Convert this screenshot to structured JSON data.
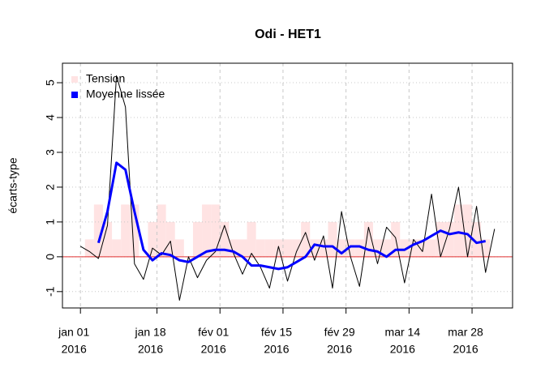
{
  "chart_data": {
    "type": "line",
    "title": "Odi - HET1",
    "y_label": "écarts-type",
    "x": [
      "2016-01-01",
      "2016-01-03",
      "2016-01-05",
      "2016-01-07",
      "2016-01-09",
      "2016-01-11",
      "2016-01-13",
      "2016-01-15",
      "2016-01-17",
      "2016-01-19",
      "2016-01-21",
      "2016-01-23",
      "2016-01-25",
      "2016-01-27",
      "2016-01-29",
      "2016-01-31",
      "2016-02-02",
      "2016-02-04",
      "2016-02-06",
      "2016-02-08",
      "2016-02-10",
      "2016-02-12",
      "2016-02-14",
      "2016-02-16",
      "2016-02-18",
      "2016-02-20",
      "2016-02-22",
      "2016-02-24",
      "2016-02-26",
      "2016-02-28",
      "2016-03-01",
      "2016-03-03",
      "2016-03-05",
      "2016-03-07",
      "2016-03-09",
      "2016-03-11",
      "2016-03-13",
      "2016-03-15",
      "2016-03-17",
      "2016-03-19",
      "2016-03-21",
      "2016-03-23",
      "2016-03-25",
      "2016-03-27",
      "2016-03-29",
      "2016-03-31",
      "2016-04-02"
    ],
    "series": [
      {
        "name": "Tension",
        "type": "bar",
        "color": "#ffe3e3",
        "values": [
          0,
          0.5,
          1.5,
          1.0,
          0.5,
          1.5,
          1.5,
          0,
          1.0,
          1.5,
          1.0,
          0.5,
          0,
          1.0,
          1.5,
          1.5,
          1.0,
          0.5,
          0.5,
          1.0,
          0.5,
          0.5,
          0.5,
          0.5,
          0.5,
          1.0,
          0.5,
          0.5,
          1.0,
          0.5,
          0.5,
          0.5,
          1.0,
          0.5,
          0.5,
          1.0,
          0.5,
          0.5,
          0.5,
          0.5,
          1.0,
          1.0,
          1.5,
          1.5,
          1.0,
          0.5,
          0
        ]
      },
      {
        "name": "Moyenne lissée",
        "type": "line",
        "color": "#0000ff",
        "width": 3,
        "values": [
          null,
          null,
          0.4,
          1.3,
          2.7,
          2.5,
          1.3,
          0.2,
          -0.1,
          0.1,
          0.05,
          -0.1,
          -0.15,
          0.0,
          0.15,
          0.2,
          0.2,
          0.15,
          0.0,
          -0.25,
          -0.25,
          -0.3,
          -0.35,
          -0.3,
          -0.15,
          0.0,
          0.35,
          0.3,
          0.3,
          0.1,
          0.3,
          0.3,
          0.2,
          0.15,
          0.0,
          0.2,
          0.2,
          0.35,
          0.45,
          0.6,
          0.75,
          0.65,
          0.7,
          0.65,
          0.4,
          0.45,
          null
        ]
      },
      {
        "type": "line",
        "color": "#000000",
        "width": 1,
        "values": [
          0.3,
          0.15,
          -0.05,
          0.9,
          5.2,
          4.3,
          -0.2,
          -0.65,
          0.25,
          0.05,
          0.45,
          -1.25,
          0.0,
          -0.6,
          -0.1,
          0.15,
          0.9,
          0.1,
          -0.5,
          0.1,
          -0.3,
          -0.9,
          0.3,
          -0.7,
          0.15,
          0.7,
          -0.1,
          0.6,
          -0.9,
          1.3,
          0.0,
          -0.85,
          0.85,
          -0.2,
          0.85,
          0.55,
          -0.75,
          0.5,
          0.15,
          1.8,
          0.0,
          0.8,
          2.0,
          0.0,
          1.45,
          -0.45,
          0.8
        ]
      }
    ],
    "hline": 0,
    "hline_color": "#e03030",
    "xlim": [
      "2015-12-28",
      "2016-04-06"
    ],
    "xticks": [
      {
        "value": "2016-01-01",
        "label": [
          "jan 01",
          "2016"
        ]
      },
      {
        "value": "2016-01-18",
        "label": [
          "jan 18",
          "2016"
        ]
      },
      {
        "value": "2016-02-01",
        "label": [
          "fév 01",
          "2016"
        ]
      },
      {
        "value": "2016-02-15",
        "label": [
          "fév 15",
          "2016"
        ]
      },
      {
        "value": "2016-02-29",
        "label": [
          "fév 29",
          "2016"
        ]
      },
      {
        "value": "2016-03-14",
        "label": [
          "mar 14",
          "2016"
        ]
      },
      {
        "value": "2016-03-28",
        "label": [
          "mar 28",
          "2016"
        ]
      }
    ],
    "ylim": [
      -1.47,
      5.56
    ],
    "yticks": [
      -1,
      0,
      1,
      2,
      3,
      4,
      5
    ],
    "grid": true,
    "legend": "top-left"
  }
}
